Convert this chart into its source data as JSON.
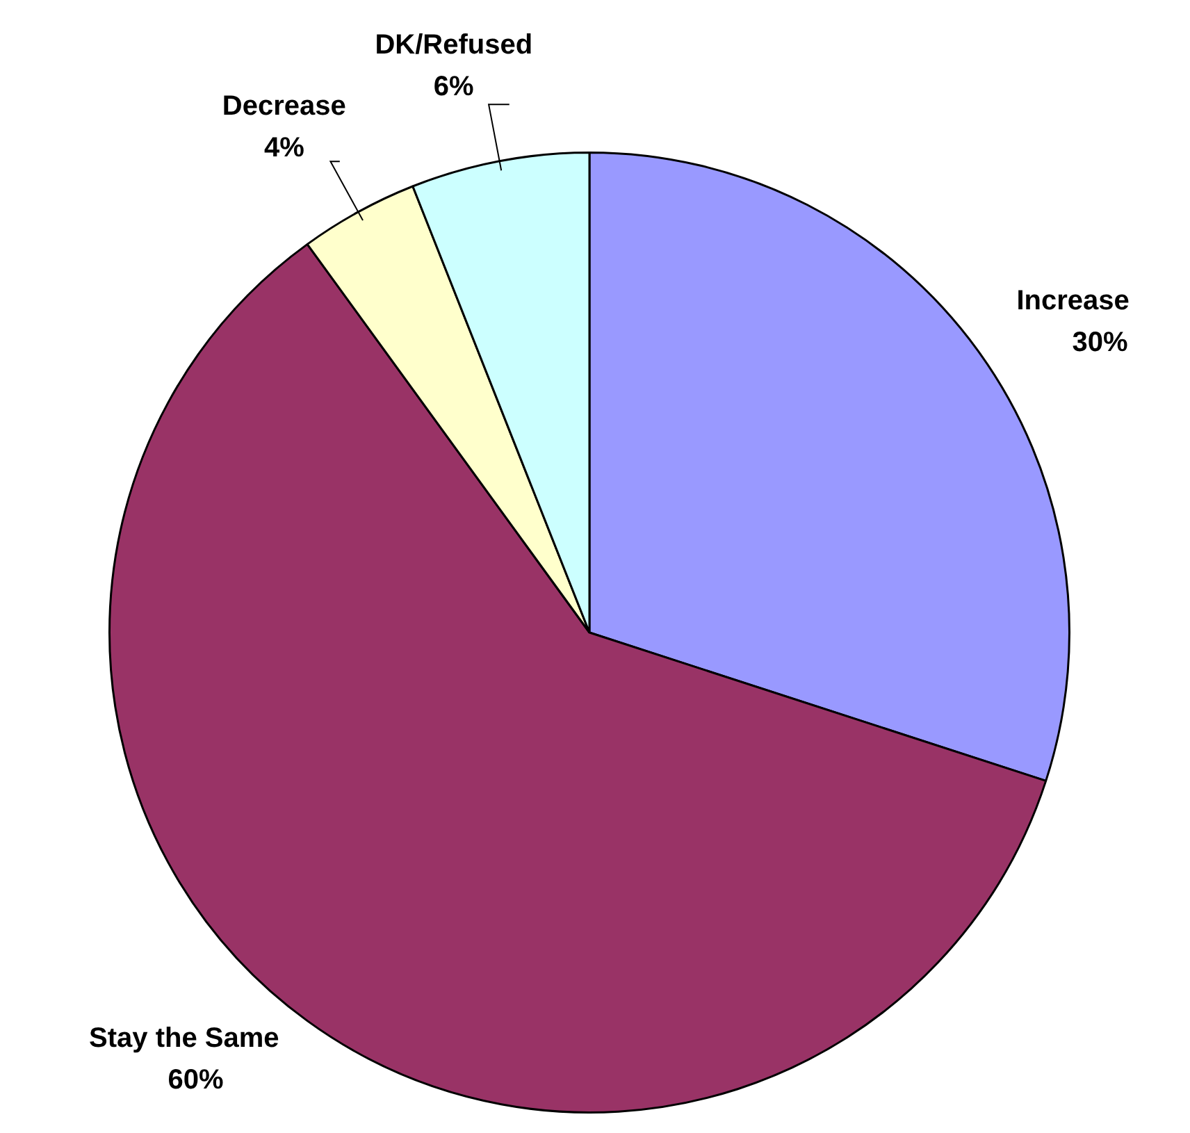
{
  "chart_data": {
    "type": "pie",
    "categories": [
      "Increase",
      "Stay the Same",
      "Decrease",
      "DK/Refused"
    ],
    "values": [
      30,
      60,
      4,
      6
    ],
    "colors": [
      "#9999ff",
      "#993366",
      "#ffffcc",
      "#ccffff"
    ],
    "value_labels": [
      "30%",
      "60%",
      "4%",
      "6%"
    ],
    "legend": false
  }
}
